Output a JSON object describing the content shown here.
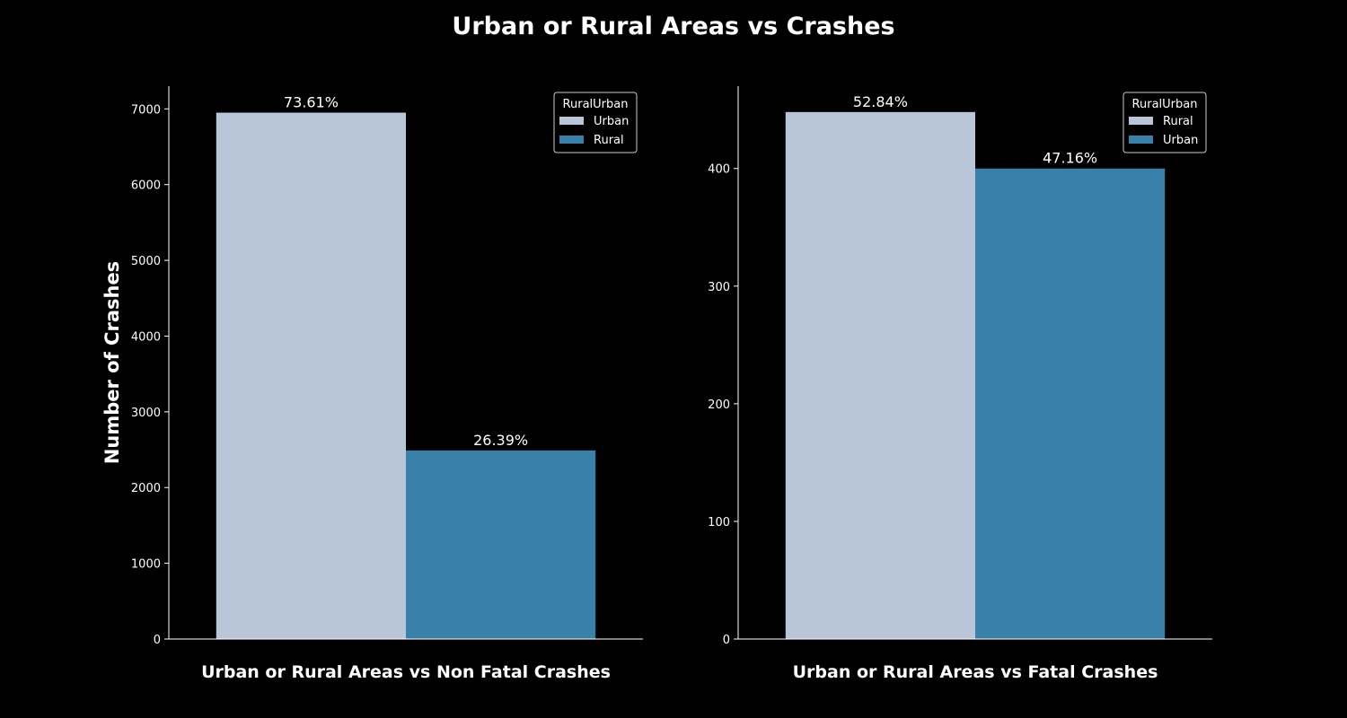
{
  "figure_title": "Urban or Rural Areas vs Crashes",
  "shared_ylabel": "Number of Crashes",
  "colors": {
    "background": "#000000",
    "foreground": "#ffffff",
    "light_blue": "#b9c6d9",
    "steel_blue": "#3a81aa"
  },
  "chart_data": [
    {
      "type": "bar",
      "title": "",
      "xlabel": "Urban or Rural Areas vs Non Fatal Crashes",
      "ylabel": "Number of Crashes",
      "legend_title": "RuralUrban",
      "legend_position": "top-right",
      "categories": [
        "Urban",
        "Rural"
      ],
      "values": [
        6950,
        2490
      ],
      "percent_labels": [
        "73.61%",
        "26.39%"
      ],
      "colors": [
        "#b9c6d9",
        "#3a81aa"
      ],
      "ylim": [
        0,
        7300
      ],
      "yticks": [
        0,
        1000,
        2000,
        3000,
        4000,
        5000,
        6000,
        7000
      ],
      "grid": false
    },
    {
      "type": "bar",
      "title": "",
      "xlabel": "Urban or Rural Areas vs Fatal Crashes",
      "ylabel": "",
      "legend_title": "RuralUrban",
      "legend_position": "top-right",
      "categories": [
        "Rural",
        "Urban"
      ],
      "values": [
        448,
        400
      ],
      "percent_labels": [
        "52.84%",
        "47.16%"
      ],
      "colors": [
        "#b9c6d9",
        "#3a81aa"
      ],
      "ylim": [
        0,
        470
      ],
      "yticks": [
        0,
        100,
        200,
        300,
        400
      ],
      "grid": false
    }
  ]
}
